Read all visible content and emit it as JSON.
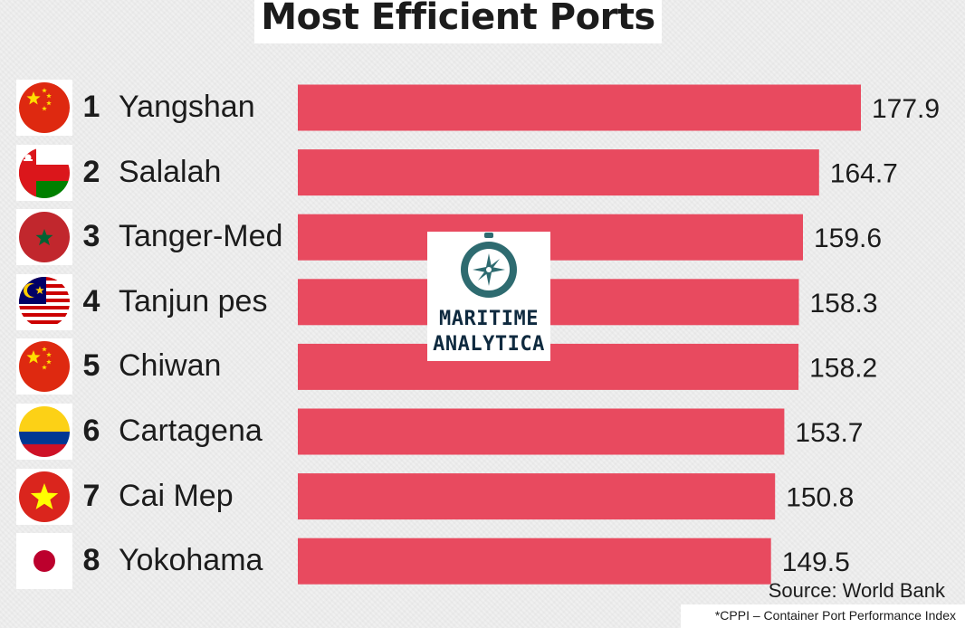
{
  "chart_data": {
    "type": "bar",
    "orientation": "horizontal",
    "title": "Most Efficient Ports",
    "categories": [
      "Yangshan",
      "Salalah",
      "Tanger-Med",
      "Tanjun pes",
      "Chiwan",
      "Cartagena",
      "Cai Mep",
      "Yokohama"
    ],
    "ranks": [
      "1",
      "2",
      "3",
      "4",
      "5",
      "6",
      "7",
      "8"
    ],
    "values": [
      177.9,
      164.7,
      159.6,
      158.3,
      158.2,
      153.7,
      150.8,
      149.5
    ],
    "value_labels": [
      "177.9",
      "164.7",
      "159.6",
      "158.3",
      "158.2",
      "153.7",
      "150.8",
      "149.5"
    ],
    "flag_icons": [
      "china-flag-icon",
      "oman-flag-icon",
      "morocco-flag-icon",
      "malaysia-flag-icon",
      "china-flag-icon",
      "colombia-flag-icon",
      "vietnam-flag-icon",
      "japan-flag-icon"
    ],
    "bar_color": "#e84a5f",
    "xlim": [
      0,
      177.9
    ],
    "grid": false,
    "legend": "none"
  },
  "logo": {
    "line1": "MARITIME",
    "line2": "ANALYTICA",
    "icon": "compass-icon",
    "color": "#2e6b70"
  },
  "source": "Source: World Bank",
  "footnote": "*CPPI – Container Port Performance Index"
}
